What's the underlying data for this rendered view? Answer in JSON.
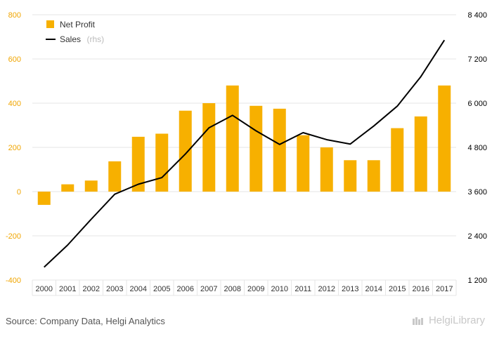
{
  "colors": {
    "bar": "#f7b000",
    "line": "#000000",
    "grid": "#e6e6e6",
    "left_tick": "#f0a500"
  },
  "legend": {
    "bar_label": "Net Profit",
    "line_label": "Sales",
    "line_note": "(rhs)"
  },
  "footer": {
    "source": "Source: Company Data, Helgi Analytics",
    "brand": "HelgiLibrary"
  },
  "chart_data": {
    "type": "bar",
    "categories": [
      "2000",
      "2001",
      "2002",
      "2003",
      "2004",
      "2005",
      "2006",
      "2007",
      "2008",
      "2009",
      "2010",
      "2011",
      "2012",
      "2013",
      "2014",
      "2015",
      "2016",
      "2017"
    ],
    "series": [
      {
        "name": "Net Profit",
        "type": "bar",
        "axis": "left",
        "values": [
          -60,
          33,
          50,
          137,
          248,
          262,
          366,
          400,
          480,
          388,
          375,
          255,
          200,
          142,
          142,
          287,
          340,
          480
        ]
      },
      {
        "name": "Sales",
        "type": "line",
        "axis": "right",
        "values": [
          1550,
          2150,
          2850,
          3530,
          3800,
          3980,
          4620,
          5330,
          5670,
          5250,
          4880,
          5200,
          5010,
          4890,
          5380,
          5920,
          6720,
          7710
        ]
      }
    ],
    "left_axis": {
      "ylim": [
        -400,
        800
      ],
      "ticks": [
        -400,
        -200,
        0,
        200,
        400,
        600,
        800
      ],
      "tick_labels": [
        "-400",
        "-200",
        "0",
        "200",
        "400",
        "600",
        "800"
      ]
    },
    "right_axis": {
      "ylim": [
        1200,
        8400
      ],
      "ticks": [
        1200,
        2400,
        3600,
        4800,
        6000,
        7200,
        8400
      ],
      "tick_labels": [
        "1 200",
        "2 400",
        "3 600",
        "4 800",
        "6 000",
        "7 200",
        "8 400"
      ]
    },
    "grid": true,
    "legend_position": "top-left"
  }
}
